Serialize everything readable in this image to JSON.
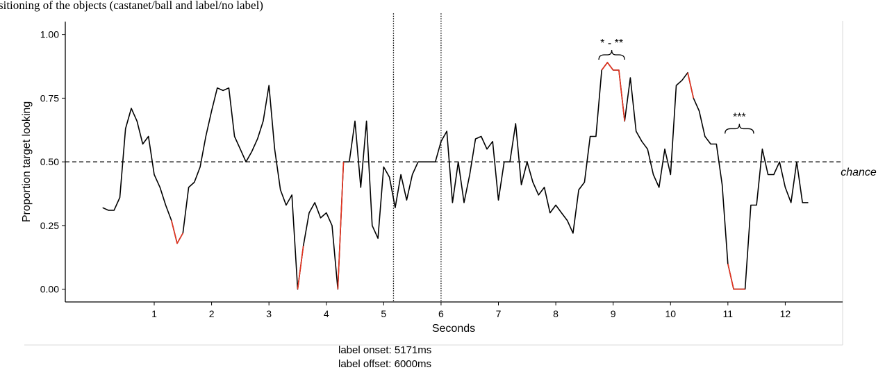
{
  "chart_data": {
    "type": "line",
    "title": "sitioning of the objects (castanet/ball and label/no label)",
    "xlabel": "Seconds",
    "ylabel": "Proportion target looking",
    "xlim": [
      -0.55,
      13.0
    ],
    "ylim": [
      -0.05,
      1.05
    ],
    "xticks": [
      1,
      2,
      3,
      4,
      5,
      6,
      7,
      8,
      9,
      10,
      11,
      12
    ],
    "yticks": [
      {
        "value": 0,
        "label": "0.00"
      },
      {
        "value": 0.25,
        "label": "0.25"
      },
      {
        "value": 0.5,
        "label": "0.50"
      },
      {
        "value": 0.75,
        "label": "0.75"
      },
      {
        "value": 1,
        "label": "1.00"
      }
    ],
    "x": [
      0.1,
      0.2,
      0.3,
      0.4,
      0.5,
      0.6,
      0.7,
      0.8,
      0.9,
      1.0,
      1.1,
      1.2,
      1.3,
      1.4,
      1.5,
      1.6,
      1.7,
      1.8,
      1.9,
      2.0,
      2.1,
      2.2,
      2.3,
      2.4,
      2.5,
      2.6,
      2.7,
      2.8,
      2.9,
      3.0,
      3.1,
      3.2,
      3.3,
      3.4,
      3.5,
      3.6,
      3.7,
      3.8,
      3.9,
      4.0,
      4.1,
      4.2,
      4.3,
      4.4,
      4.5,
      4.6,
      4.7,
      4.8,
      4.9,
      5.0,
      5.1,
      5.2,
      5.3,
      5.4,
      5.5,
      5.6,
      5.7,
      5.8,
      5.9,
      6.0,
      6.1,
      6.2,
      6.3,
      6.4,
      6.5,
      6.6,
      6.7,
      6.8,
      6.9,
      7.0,
      7.1,
      7.2,
      7.3,
      7.4,
      7.5,
      7.6,
      7.7,
      7.8,
      7.9,
      8.0,
      8.1,
      8.2,
      8.3,
      8.4,
      8.5,
      8.6,
      8.7,
      8.8,
      8.9,
      9.0,
      9.1,
      9.2,
      9.3,
      9.4,
      9.5,
      9.6,
      9.7,
      9.8,
      9.9,
      10.0,
      10.1,
      10.2,
      10.3,
      10.4,
      10.5,
      10.6,
      10.7,
      10.8,
      10.9,
      11.0,
      11.1,
      11.2,
      11.3,
      11.4,
      11.5,
      11.6,
      11.7,
      11.8,
      11.9,
      12.0,
      12.1,
      12.2,
      12.3,
      12.4
    ],
    "series": [
      {
        "color": "#000000",
        "values": [
          0.32,
          0.31,
          0.31,
          0.36,
          0.63,
          0.71,
          0.66,
          0.57,
          0.6,
          0.45,
          0.4,
          0.33,
          0.27,
          0.18,
          0.22,
          0.4,
          0.42,
          0.48,
          0.6,
          0.7,
          0.79,
          0.78,
          0.79,
          0.6,
          0.55,
          0.5,
          0.54,
          0.59,
          0.66,
          0.8,
          0.55,
          0.39,
          0.33,
          0.37,
          0.0,
          0.17,
          0.3,
          0.34,
          0.28,
          0.3,
          0.25,
          0.0,
          0.5,
          0.5,
          0.66,
          0.4,
          0.66,
          0.25,
          0.2,
          0.48,
          0.44,
          0.32,
          0.45,
          0.35,
          0.45,
          0.5,
          0.5,
          0.5,
          0.5,
          0.58,
          0.62,
          0.34,
          0.5,
          0.34,
          0.45,
          0.59,
          0.6,
          0.55,
          0.58,
          0.35,
          0.5,
          0.5,
          0.65,
          0.41,
          0.5,
          0.42,
          0.37,
          0.4,
          0.3,
          0.33,
          0.3,
          0.27,
          0.22,
          0.39,
          0.42,
          0.6,
          0.6,
          0.86,
          0.89,
          0.86,
          0.86,
          0.66,
          0.83,
          0.62,
          0.58,
          0.55,
          0.45,
          0.4,
          0.55,
          0.45,
          0.8,
          0.82,
          0.85,
          0.75,
          0.7,
          0.6,
          0.57,
          0.57,
          0.41,
          0.1,
          0.0,
          0.0,
          0.0,
          0.33,
          0.33,
          0.55,
          0.45,
          0.45,
          0.5,
          0.4,
          0.34,
          0.5,
          0.34,
          0.34
        ]
      },
      {
        "color": "#e8321e",
        "values": [
          null,
          null,
          null,
          null,
          null,
          null,
          null,
          null,
          null,
          null,
          null,
          null,
          0.27,
          0.18,
          0.22,
          null,
          null,
          null,
          null,
          null,
          null,
          null,
          null,
          null,
          null,
          null,
          null,
          null,
          null,
          null,
          null,
          null,
          null,
          null,
          0.0,
          0.17,
          null,
          null,
          null,
          null,
          null,
          0.0,
          0.5,
          null,
          null,
          null,
          null,
          null,
          null,
          null,
          null,
          null,
          null,
          null,
          null,
          null,
          null,
          null,
          null,
          null,
          null,
          null,
          null,
          null,
          null,
          null,
          null,
          null,
          null,
          null,
          null,
          null,
          null,
          null,
          null,
          null,
          null,
          null,
          null,
          null,
          null,
          null,
          null,
          null,
          null,
          null,
          null,
          0.86,
          0.89,
          0.86,
          0.86,
          0.66,
          null,
          null,
          null,
          null,
          null,
          null,
          null,
          null,
          null,
          null,
          0.85,
          0.75,
          null,
          null,
          null,
          null,
          null,
          0.1,
          0.0,
          0.0,
          0.0,
          null,
          null,
          null,
          null,
          null,
          null,
          null,
          null,
          null,
          null,
          null
        ]
      }
    ],
    "hline": {
      "value": 0.5,
      "label": "chance"
    },
    "vlines": [
      5.171,
      6
    ],
    "brackets": [
      {
        "x": [
          8.75,
          9.2
        ],
        "y": 0.92,
        "label": "* - **"
      },
      {
        "x": [
          10.95,
          11.45
        ],
        "y": 0.63,
        "label": "***"
      }
    ],
    "notes": [
      "label onset: 5171ms",
      "label offset: 6000ms"
    ]
  }
}
